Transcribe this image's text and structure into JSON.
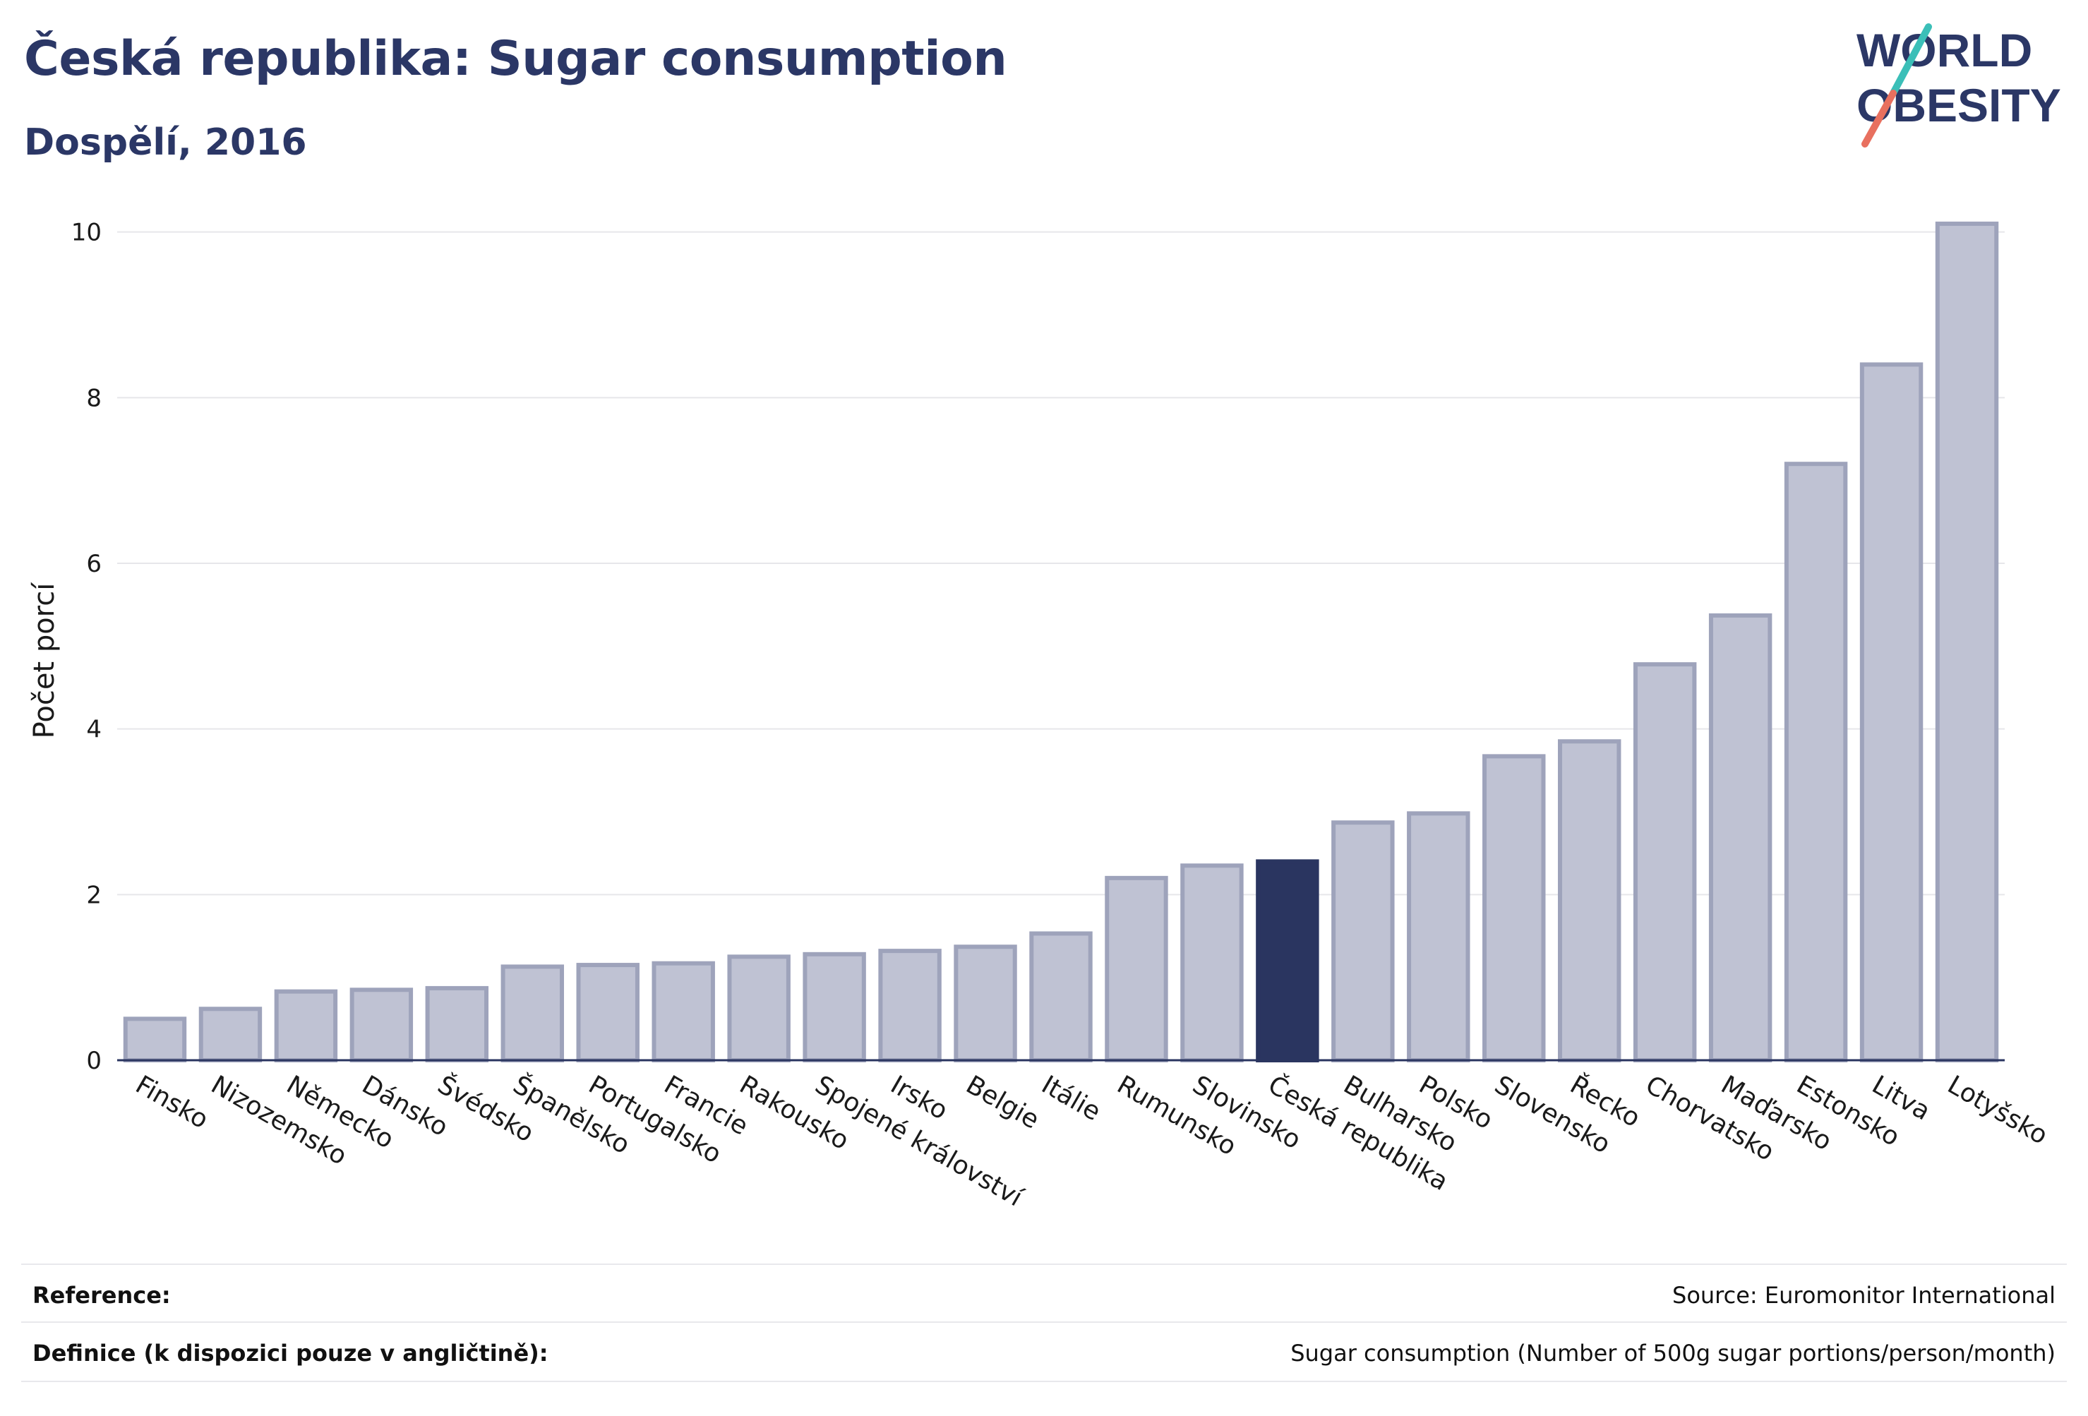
{
  "header": {
    "title": "Česká republika: Sugar consumption",
    "subtitle": "Dospělí, 2016"
  },
  "logo": {
    "line1": "WORLD",
    "line2": "OBESITY",
    "accent_teal": "#3bbfb8",
    "accent_coral": "#e8705f",
    "brand_color": "#2b3766"
  },
  "chart_data": {
    "type": "bar",
    "ylabel": "Počet porcí",
    "ylim": [
      0,
      10.5
    ],
    "yticks": [
      0,
      2,
      4,
      6,
      8,
      10
    ],
    "grid": true,
    "highlight": "Česká republika",
    "colors": {
      "bar": "#bfc2d3",
      "bar_edge": "#9ea3bb",
      "highlight": "#2a3560"
    },
    "categories": [
      "Finsko",
      "Nizozemsko",
      "Německo",
      "Dánsko",
      "Švédsko",
      "Španělsko",
      "Portugalsko",
      "Francie",
      "Rakousko",
      "Spojené království",
      "Irsko",
      "Belgie",
      "Itálie",
      "Rumunsko",
      "Slovinsko",
      "Česká republika",
      "Bulharsko",
      "Polsko",
      "Slovensko",
      "Řecko",
      "Chorvatsko",
      "Maďarsko",
      "Estonsko",
      "Litva",
      "Lotyšsko"
    ],
    "values": [
      0.5,
      0.62,
      0.83,
      0.85,
      0.87,
      1.13,
      1.15,
      1.17,
      1.25,
      1.28,
      1.32,
      1.37,
      1.53,
      2.2,
      2.35,
      2.4,
      2.87,
      2.98,
      3.67,
      3.85,
      4.78,
      5.37,
      7.2,
      8.4,
      10.1
    ]
  },
  "footer": {
    "reference_label": "Reference:",
    "reference_value": "Source: Euromonitor International",
    "definition_label": "Definice (k dispozici pouze v angličtině):",
    "definition_value": "Sugar consumption (Number of 500g sugar portions/person/month)"
  }
}
